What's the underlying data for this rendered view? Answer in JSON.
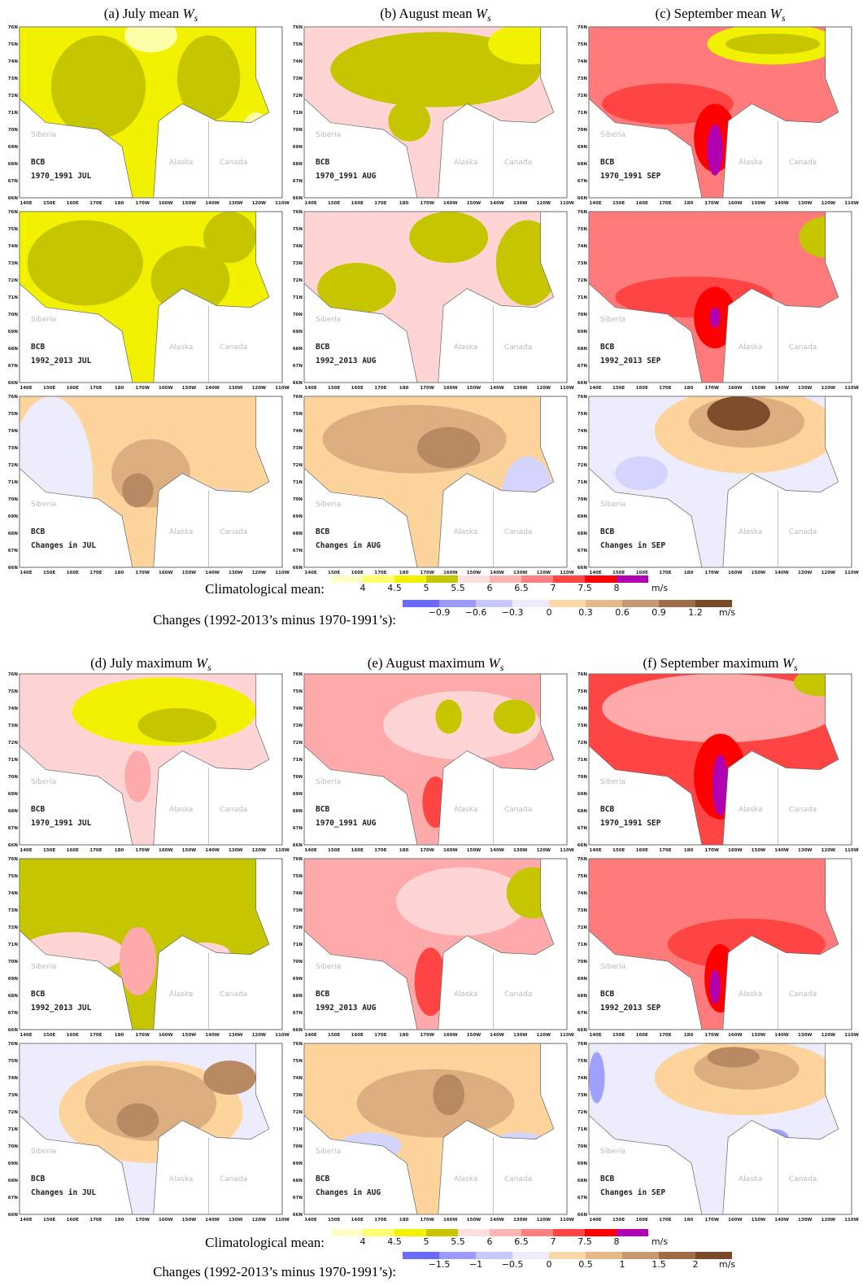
{
  "blocks": [
    {
      "columns": [
        {
          "title": "(a) July mean",
          "symbol": "W",
          "subscript": "s",
          "panels": [
            {
              "region": "BCB",
              "period": "1970_1991 JUL"
            },
            {
              "region": "BCB",
              "period": "1992_2013 JUL"
            },
            {
              "region": "BCB",
              "period": "Changes in JUL"
            }
          ]
        },
        {
          "title": "(b) August mean",
          "symbol": "W",
          "subscript": "s",
          "panels": [
            {
              "region": "BCB",
              "period": "1970_1991 AUG"
            },
            {
              "region": "BCB",
              "period": "1992_2013 AUG"
            },
            {
              "region": "BCB",
              "period": "Changes in AUG"
            }
          ]
        },
        {
          "title": "(c) September mean",
          "symbol": "W",
          "subscript": "s",
          "panels": [
            {
              "region": "BCB",
              "period": "1970_1991 SEP"
            },
            {
              "region": "BCB",
              "period": "1992_2013 SEP"
            },
            {
              "region": "BCB",
              "period": "Changes in SEP"
            }
          ]
        }
      ],
      "colorbars": [
        {
          "label": "Climatological mean:",
          "ticks": [
            "4",
            "4.5",
            "5",
            "5.5",
            "6",
            "6.5",
            "7",
            "7.5",
            "8"
          ],
          "unit": "m/s"
        },
        {
          "label": "Changes (1992-2013’s minus 1970-1991’s):",
          "ticks": [
            "−0.9",
            "−0.6",
            "−0.3",
            "0",
            "0.3",
            "0.6",
            "0.9",
            "1.2"
          ],
          "unit": "m/s"
        }
      ]
    },
    {
      "columns": [
        {
          "title": "(d) July maximum",
          "symbol": "W",
          "subscript": "s",
          "panels": [
            {
              "region": "BCB",
              "period": "1970_1991 JUL"
            },
            {
              "region": "BCB",
              "period": "1992_2013 JUL"
            },
            {
              "region": "BCB",
              "period": "Changes in JUL"
            }
          ]
        },
        {
          "title": "(e) August maximum",
          "symbol": "W",
          "subscript": "s",
          "panels": [
            {
              "region": "BCB",
              "period": "1970_1991 AUG"
            },
            {
              "region": "BCB",
              "period": "1992_2013 AUG"
            },
            {
              "region": "BCB",
              "period": "Changes in AUG"
            }
          ]
        },
        {
          "title": "(f) September maximum",
          "symbol": "W",
          "subscript": "s",
          "panels": [
            {
              "region": "BCB",
              "period": "1970_1991 SEP"
            },
            {
              "region": "BCB",
              "period": "1992_2013 SEP"
            },
            {
              "region": "BCB",
              "period": "Changes in SEP"
            }
          ]
        }
      ],
      "colorbars": [
        {
          "label": "Climatological mean:",
          "ticks": [
            "4",
            "4.5",
            "5",
            "5.5",
            "6",
            "6.5",
            "7",
            "7.5",
            "8"
          ],
          "unit": "m/s"
        },
        {
          "label": "Changes (1992-2013’s minus 1970-1991’s):",
          "ticks": [
            "−1.5",
            "−1",
            "−0.5",
            "0",
            "0.5",
            "1",
            "1.5",
            "2"
          ],
          "unit": "m/s"
        }
      ]
    }
  ],
  "map_labels": {
    "lat": [
      "76N",
      "75N",
      "74N",
      "73N",
      "72N",
      "71N",
      "70N",
      "69N",
      "68N",
      "67N",
      "66N"
    ],
    "lon": [
      "140E",
      "150E",
      "160E",
      "170E",
      "180",
      "170W",
      "160W",
      "150W",
      "140W",
      "130W",
      "120W",
      "110W"
    ],
    "places": [
      "Siberia",
      "Alaska",
      "Canada"
    ]
  }
}
